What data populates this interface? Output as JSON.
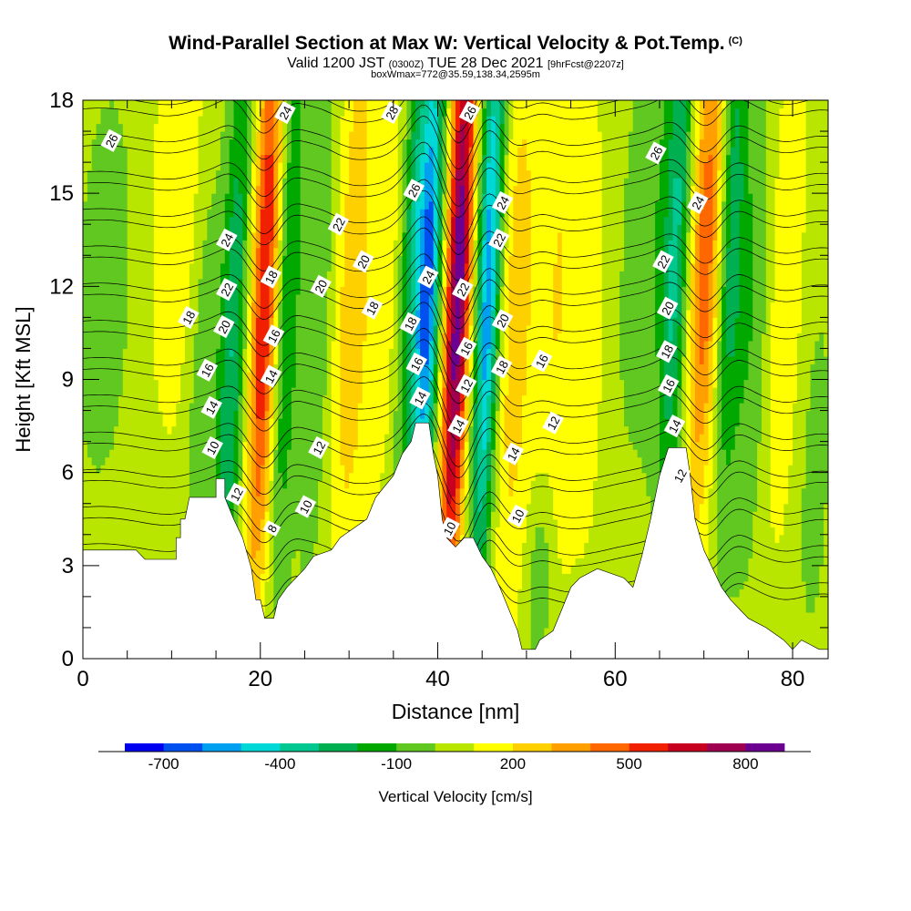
{
  "title": {
    "main": "Wind-Parallel Section at Max W: Vertical Velocity & Pot.Temp.",
    "copyright": "(C)",
    "valid_prefix": "Valid 1200 JST",
    "valid_utc": "(0300Z)",
    "valid_date": "TUE 28 Dec 2021",
    "forecast": "[9hrFcst@2207z]",
    "box_info": "boxWmax=772@35.59,138.34,2595m"
  },
  "chart_data": {
    "type": "heatmap",
    "xlabel": "Distance [nm]",
    "ylabel": "Height [Kft MSL]",
    "xlim": [
      0,
      84
    ],
    "ylim": [
      0,
      18
    ],
    "x_ticks": [
      0,
      20,
      40,
      60,
      80
    ],
    "y_ticks": [
      0,
      3,
      6,
      9,
      12,
      15,
      18
    ],
    "colorbar": {
      "label": "Vertical Velocity [cm/s]",
      "tick_labels": [
        "-700",
        "-400",
        "-100",
        "200",
        "500",
        "800"
      ],
      "tick_values": [
        -700,
        -400,
        -100,
        200,
        500,
        800
      ],
      "bins": [
        -800,
        -700,
        -600,
        -500,
        -400,
        -300,
        -200,
        -100,
        0,
        100,
        200,
        300,
        400,
        500,
        600,
        700,
        800,
        900
      ],
      "colors": [
        "#0000f0",
        "#0050f0",
        "#00a0f0",
        "#00d8d8",
        "#00c890",
        "#00b050",
        "#00a800",
        "#60c820",
        "#b8e600",
        "#ffff00",
        "#ffd000",
        "#ffa000",
        "#ff6800",
        "#f02000",
        "#c80020",
        "#a00050",
        "#6c0090"
      ]
    },
    "terrain_kft": [
      [
        0,
        3.5
      ],
      [
        6,
        3.5
      ],
      [
        7,
        3.2
      ],
      [
        10.5,
        3.2
      ],
      [
        10.5,
        3.9
      ],
      [
        11,
        3.9
      ],
      [
        11,
        4.5
      ],
      [
        11.5,
        4.5
      ],
      [
        12,
        5.2
      ],
      [
        15,
        5.2
      ],
      [
        15,
        5.8
      ],
      [
        16,
        5.8
      ],
      [
        16,
        5.2
      ],
      [
        17,
        4.5
      ],
      [
        18,
        3.9
      ],
      [
        19,
        2.9
      ],
      [
        19.5,
        1.9
      ],
      [
        20,
        1.9
      ],
      [
        20.5,
        1.3
      ],
      [
        21.5,
        1.3
      ],
      [
        22,
        1.9
      ],
      [
        23,
        2.3
      ],
      [
        24,
        2.6
      ],
      [
        25,
        2.9
      ],
      [
        26,
        3.3
      ],
      [
        28,
        3.5
      ],
      [
        29,
        3.9
      ],
      [
        32,
        4.5
      ],
      [
        33,
        5.2
      ],
      [
        35,
        5.9
      ],
      [
        36,
        6.6
      ],
      [
        37,
        7.0
      ],
      [
        37.5,
        7.6
      ],
      [
        39,
        7.6
      ],
      [
        39.5,
        6.6
      ],
      [
        40,
        5.9
      ],
      [
        40.5,
        4.5
      ],
      [
        41,
        3.9
      ],
      [
        42,
        3.6
      ],
      [
        43,
        3.9
      ],
      [
        44,
        3.9
      ],
      [
        45,
        3.3
      ],
      [
        46,
        2.9
      ],
      [
        47,
        2.3
      ],
      [
        48,
        1.6
      ],
      [
        49,
        0.9
      ],
      [
        49.5,
        0.3
      ],
      [
        51,
        0.3
      ],
      [
        51.5,
        0.6
      ],
      [
        53,
        0.9
      ],
      [
        54,
        1.6
      ],
      [
        55,
        2.3
      ],
      [
        56,
        2.6
      ],
      [
        58,
        2.9
      ],
      [
        61,
        2.6
      ],
      [
        62,
        2.3
      ],
      [
        63,
        3.3
      ],
      [
        64,
        4.5
      ],
      [
        65,
        5.9
      ],
      [
        66,
        6.8
      ],
      [
        68,
        6.8
      ],
      [
        68.5,
        5.8
      ],
      [
        69,
        4.5
      ],
      [
        70,
        3.5
      ],
      [
        71,
        2.9
      ],
      [
        72,
        2.3
      ],
      [
        73,
        1.9
      ],
      [
        74,
        1.6
      ],
      [
        75,
        1.3
      ],
      [
        77,
        1.0
      ],
      [
        79,
        0.6
      ],
      [
        80,
        0.3
      ],
      [
        81,
        0.6
      ],
      [
        83,
        0.3
      ],
      [
        84,
        0.3
      ]
    ],
    "w_field": {
      "background_cms": 50,
      "lobes": [
        {
          "x": 2.5,
          "y": 12,
          "sx": 2.2,
          "sy": 4.5,
          "amp": -120
        },
        {
          "x": 11,
          "y": 15,
          "sx": 2.5,
          "sy": 6,
          "amp": 120
        },
        {
          "x": 13.5,
          "y": 9,
          "sx": 1.2,
          "sy": 6,
          "amp": -150
        },
        {
          "x": 16.8,
          "y": 10,
          "sx": 1.0,
          "sy": 7,
          "amp": -350
        },
        {
          "x": 20.5,
          "y": 12,
          "sx": 1.0,
          "sy": 7,
          "amp": 560
        },
        {
          "x": 23.2,
          "y": 12,
          "sx": 0.9,
          "sy": 7,
          "amp": -250
        },
        {
          "x": 26.5,
          "y": 12,
          "sx": 1.2,
          "sy": 7,
          "amp": -150
        },
        {
          "x": 30.5,
          "y": 12,
          "sx": 1.5,
          "sy": 7,
          "amp": 230
        },
        {
          "x": 34.5,
          "y": 13,
          "sx": 1.2,
          "sy": 6,
          "amp": 100
        },
        {
          "x": 37.3,
          "y": 13,
          "sx": 1.0,
          "sy": 6,
          "amp": -350
        },
        {
          "x": 39.0,
          "y": 12,
          "sx": 0.9,
          "sy": 6,
          "amp": -650
        },
        {
          "x": 42.3,
          "y": 12,
          "sx": 1.0,
          "sy": 8,
          "amp": 820
        },
        {
          "x": 45.7,
          "y": 12,
          "sx": 0.9,
          "sy": 7,
          "amp": -620
        },
        {
          "x": 48.8,
          "y": 11,
          "sx": 1.3,
          "sy": 7,
          "amp": 200
        },
        {
          "x": 53.5,
          "y": 12,
          "sx": 2.0,
          "sy": 7,
          "amp": 150
        },
        {
          "x": 58,
          "y": 10,
          "sx": 2.0,
          "sy": 7,
          "amp": 70
        },
        {
          "x": 61,
          "y": 12,
          "sx": 1.5,
          "sy": 6,
          "amp": -80
        },
        {
          "x": 51.5,
          "y": 2.5,
          "sx": 1.0,
          "sy": 2.2,
          "amp": -180
        },
        {
          "x": 64.5,
          "y": 15,
          "sx": 1.3,
          "sy": 6,
          "amp": -120
        },
        {
          "x": 66.8,
          "y": 13,
          "sx": 1.0,
          "sy": 6,
          "amp": -380
        },
        {
          "x": 70.2,
          "y": 13,
          "sx": 1.2,
          "sy": 6,
          "amp": 420
        },
        {
          "x": 73.2,
          "y": 14,
          "sx": 1.0,
          "sy": 6,
          "amp": -300
        },
        {
          "x": 75.5,
          "y": 11,
          "sx": 1.5,
          "sy": 6,
          "amp": -150
        },
        {
          "x": 79,
          "y": 12,
          "sx": 1.5,
          "sy": 6,
          "amp": 140
        },
        {
          "x": 82.5,
          "y": 6,
          "sx": 1.2,
          "sy": 4,
          "amp": -100
        }
      ]
    },
    "theta_contours": {
      "levels": [
        2,
        4,
        6,
        8,
        10,
        12,
        14,
        16,
        18,
        20,
        22,
        24,
        26,
        28
      ],
      "labels": [
        {
          "text": "26",
          "x": 3.2,
          "y": 16.7
        },
        {
          "text": "24",
          "x": 22.8,
          "y": 17.6
        },
        {
          "text": "28",
          "x": 34.8,
          "y": 17.6
        },
        {
          "text": "26",
          "x": 43.6,
          "y": 17.6
        },
        {
          "text": "26",
          "x": 64.6,
          "y": 16.3
        },
        {
          "text": "26",
          "x": 37.3,
          "y": 15.1
        },
        {
          "text": "24",
          "x": 47.3,
          "y": 14.7
        },
        {
          "text": "24",
          "x": 69.3,
          "y": 14.7
        },
        {
          "text": "24",
          "x": 16.2,
          "y": 13.5
        },
        {
          "text": "22",
          "x": 28.8,
          "y": 14.0
        },
        {
          "text": "22",
          "x": 46.9,
          "y": 13.5
        },
        {
          "text": "22",
          "x": 65.4,
          "y": 12.8
        },
        {
          "text": "20",
          "x": 31.6,
          "y": 12.8
        },
        {
          "text": "18",
          "x": 21.2,
          "y": 12.3
        },
        {
          "text": "24",
          "x": 38.9,
          "y": 12.3
        },
        {
          "text": "22",
          "x": 42.8,
          "y": 11.9
        },
        {
          "text": "20",
          "x": 26.8,
          "y": 12.0
        },
        {
          "text": "22",
          "x": 16.2,
          "y": 11.9
        },
        {
          "text": "20",
          "x": 65.9,
          "y": 11.3
        },
        {
          "text": "18",
          "x": 32.6,
          "y": 11.3
        },
        {
          "text": "18",
          "x": 11.9,
          "y": 11.0
        },
        {
          "text": "20",
          "x": 47.3,
          "y": 10.9
        },
        {
          "text": "18",
          "x": 36.9,
          "y": 10.8
        },
        {
          "text": "20",
          "x": 15.9,
          "y": 10.7
        },
        {
          "text": "16",
          "x": 21.5,
          "y": 10.4
        },
        {
          "text": "16",
          "x": 43.2,
          "y": 10.0
        },
        {
          "text": "18",
          "x": 65.8,
          "y": 9.9
        },
        {
          "text": "16",
          "x": 37.6,
          "y": 9.5
        },
        {
          "text": "16",
          "x": 51.7,
          "y": 9.6
        },
        {
          "text": "18",
          "x": 47.2,
          "y": 9.4
        },
        {
          "text": "16",
          "x": 14.0,
          "y": 9.3
        },
        {
          "text": "14",
          "x": 21.2,
          "y": 9.1
        },
        {
          "text": "12",
          "x": 43.2,
          "y": 8.8
        },
        {
          "text": "16",
          "x": 66.0,
          "y": 8.8
        },
        {
          "text": "14",
          "x": 38.0,
          "y": 8.4
        },
        {
          "text": "14",
          "x": 14.5,
          "y": 8.1
        },
        {
          "text": "12",
          "x": 53.0,
          "y": 7.6
        },
        {
          "text": "14",
          "x": 42.3,
          "y": 7.5
        },
        {
          "text": "14",
          "x": 66.7,
          "y": 7.5
        },
        {
          "text": "12",
          "x": 26.6,
          "y": 6.8
        },
        {
          "text": "10",
          "x": 14.6,
          "y": 6.8
        },
        {
          "text": "14",
          "x": 48.5,
          "y": 6.6
        },
        {
          "text": "12",
          "x": 67.3,
          "y": 5.9
        },
        {
          "text": "12",
          "x": 17.3,
          "y": 5.3
        },
        {
          "text": "10",
          "x": 25.1,
          "y": 4.9
        },
        {
          "text": "10",
          "x": 49.0,
          "y": 4.6
        },
        {
          "text": "8",
          "x": 21.3,
          "y": 4.2
        },
        {
          "text": "10",
          "x": 41.3,
          "y": 4.2
        }
      ]
    }
  }
}
